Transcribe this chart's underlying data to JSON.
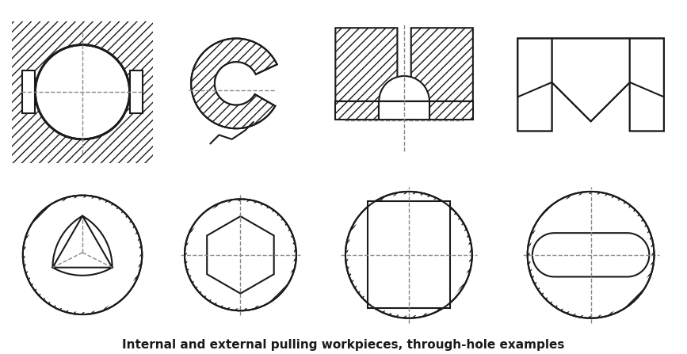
{
  "title": "Internal and external pulling workpieces, through-hole examples",
  "title_fontsize": 11,
  "title_fontweight": "bold",
  "bg_color": "#ffffff",
  "line_color": "#1a1a1a",
  "hatch_color": "#1a1a1a",
  "dash_color": "#888888",
  "fig_width": 8.67,
  "fig_height": 4.47,
  "dpi": 100
}
